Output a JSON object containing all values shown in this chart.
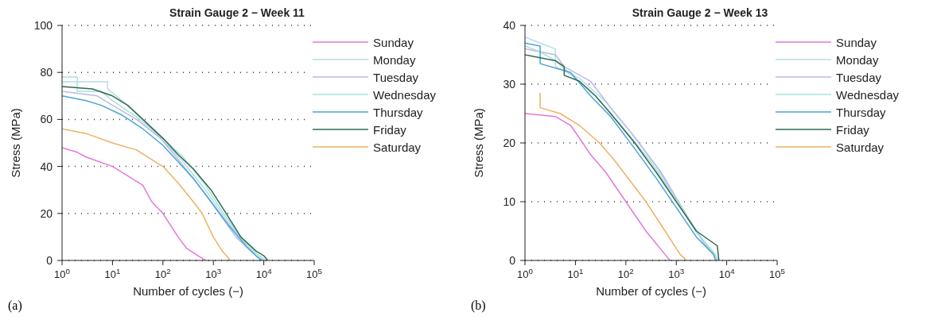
{
  "chart_data": [
    {
      "type": "line",
      "title": "Strain Gauge 2 − Week 11",
      "xlabel": "Number of cycles (−)",
      "ylabel": "Stress (MPa)",
      "annotations": [
        "(a)"
      ],
      "log": "x",
      "grid": "y",
      "legend": "top right",
      "xlim": [
        1,
        100000
      ],
      "xticks": [
        {
          "value": 1,
          "label": "10$^{0}$"
        },
        {
          "value": 10,
          "label": "10$^{1}$"
        },
        {
          "value": 100,
          "label": "10$^{2}$"
        },
        {
          "value": 1000,
          "label": "10$^{3}$"
        },
        {
          "value": 10000,
          "label": "10$^{4}$"
        },
        {
          "value": 100000,
          "label": "10$^{5}$"
        }
      ],
      "ylim": [
        0,
        100
      ],
      "yticks": [
        0,
        20,
        40,
        60,
        80,
        100
      ],
      "series": [
        {
          "name": "Sunday",
          "color": "#e377d8",
          "x": [
            1,
            2,
            3,
            10,
            20,
            40,
            60,
            100,
            200,
            300,
            500,
            700
          ],
          "values": [
            48,
            46,
            44,
            40,
            36,
            32,
            25,
            20,
            10,
            5,
            2,
            0
          ]
        },
        {
          "name": "Monday",
          "color": "#b8dbe8",
          "x": [
            1,
            8,
            8,
            20,
            40,
            100,
            250,
            700,
            1700,
            4500,
            11000
          ],
          "values": [
            76,
            76,
            73,
            66,
            60,
            51,
            42,
            30,
            18,
            6,
            0
          ]
        },
        {
          "name": "Tuesday",
          "color": "#b9b9e8",
          "x": [
            1,
            5,
            10,
            30,
            90,
            200,
            600,
            1300,
            2800,
            7000,
            9500
          ],
          "values": [
            72,
            70,
            66,
            60,
            52,
            43,
            30,
            20,
            10,
            2,
            0
          ]
        },
        {
          "name": "Wednesday",
          "color": "#a8e0dc",
          "x": [
            1,
            2,
            2,
            6,
            10,
            30,
            100,
            250,
            700,
            1600,
            4000,
            10000
          ],
          "values": [
            78,
            78,
            72,
            72,
            68,
            61,
            52,
            44,
            32,
            20,
            8,
            0
          ]
        },
        {
          "name": "Thursday",
          "color": "#4aa3d6",
          "x": [
            1,
            3,
            6,
            15,
            40,
            100,
            200,
            400,
            900,
            2000,
            4500,
            7000,
            9000
          ],
          "values": [
            70,
            68,
            66,
            62,
            56,
            49,
            42,
            35,
            25,
            15,
            6,
            2,
            0
          ]
        },
        {
          "name": "Friday",
          "color": "#2f6b4f",
          "x": [
            1,
            4,
            10,
            20,
            40,
            100,
            200,
            400,
            900,
            1800,
            3500,
            7000,
            10000,
            12000
          ],
          "values": [
            74,
            73,
            70,
            66,
            60,
            52,
            45,
            39,
            30,
            20,
            10,
            4,
            2,
            0
          ]
        },
        {
          "name": "Saturday",
          "color": "#f0b060",
          "x": [
            1,
            3,
            10,
            30,
            70,
            100,
            200,
            400,
            600,
            1000,
            1500,
            2000,
            2100
          ],
          "values": [
            56,
            54,
            50,
            47,
            42,
            40,
            33,
            25,
            20,
            10,
            4,
            1,
            0
          ]
        }
      ]
    },
    {
      "type": "line",
      "title": "Strain Gauge 2 − Week 13",
      "xlabel": "Number of cycles (−)",
      "ylabel": "Stress (MPa)",
      "annotations": [
        "(b)"
      ],
      "log": "x",
      "grid": "y",
      "legend": "top right",
      "xlim": [
        1,
        100000
      ],
      "xticks": [
        {
          "value": 1,
          "label": "10$^{0}$"
        },
        {
          "value": 10,
          "label": "10$^{1}$"
        },
        {
          "value": 100,
          "label": "10$^{2}$"
        },
        {
          "value": 1000,
          "label": "10$^{3}$"
        },
        {
          "value": 10000,
          "label": "10$^{4}$"
        },
        {
          "value": 100000,
          "label": "10$^{5}$"
        }
      ],
      "ylim": [
        0,
        40
      ],
      "yticks": [
        0,
        10,
        20,
        30,
        40
      ],
      "series": [
        {
          "name": "Sunday",
          "color": "#e377d8",
          "x": [
            1,
            4,
            8,
            14,
            20,
            40,
            100,
            250,
            600,
            750
          ],
          "values": [
            25,
            24.5,
            23,
            20,
            18,
            15,
            10,
            5,
            1,
            0
          ]
        },
        {
          "name": "Monday",
          "color": "#b8dbe8",
          "x": [
            1,
            2,
            4,
            4,
            12,
            40,
            120,
            400,
            1100,
            2400,
            6000,
            6500
          ],
          "values": [
            38,
            37,
            36,
            33,
            31,
            27,
            22,
            16,
            10,
            5,
            1,
            0
          ]
        },
        {
          "name": "Tuesday",
          "color": "#b9b9e8",
          "x": [
            1,
            4,
            6,
            20,
            50,
            150,
            500,
            1300,
            3500,
            7000
          ],
          "values": [
            36,
            35,
            33,
            30.5,
            26,
            21,
            15,
            9,
            3,
            0
          ]
        },
        {
          "name": "Wednesday",
          "color": "#a8e0dc",
          "x": [
            1,
            2,
            4,
            10,
            25,
            80,
            300,
            900,
            2500,
            7000
          ],
          "values": [
            36.5,
            35.5,
            34,
            31,
            28,
            23,
            17,
            11,
            5,
            0
          ]
        },
        {
          "name": "Thursday",
          "color": "#4aa3d6",
          "x": [
            1,
            2,
            2,
            8,
            20,
            50,
            150,
            400,
            1000,
            2500,
            5500,
            6000
          ],
          "values": [
            37,
            36.5,
            33.5,
            32,
            28,
            24.5,
            19,
            14,
            9,
            4,
            1,
            0
          ]
        },
        {
          "name": "Friday",
          "color": "#2f6b4f",
          "x": [
            1,
            4,
            6,
            6,
            12,
            25,
            50,
            150,
            400,
            1000,
            2500,
            6500,
            7000
          ],
          "values": [
            35,
            34,
            33,
            31.5,
            30.5,
            28,
            25,
            20,
            15,
            10,
            5,
            2.5,
            0
          ]
        },
        {
          "name": "Saturday",
          "color": "#f0b060",
          "x": [
            2,
            2,
            5,
            12,
            30,
            60,
            250,
            600,
            1200,
            1600
          ],
          "values": [
            28.5,
            26,
            25,
            23,
            20,
            17,
            10,
            5,
            1,
            0
          ]
        }
      ]
    }
  ]
}
